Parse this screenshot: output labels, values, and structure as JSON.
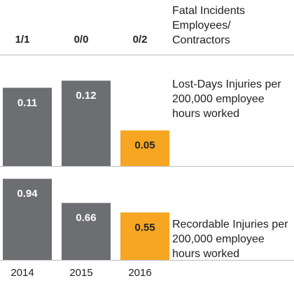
{
  "fatal_incidents": {
    "label_lines": [
      "Fatal Incidents",
      "Employees/",
      "Contractors"
    ],
    "values": [
      "1/1",
      "0/0",
      "0/2"
    ]
  },
  "chart_data": [
    {
      "type": "bar",
      "title": "Lost-Days Injuries per 200,000 employee hours worked",
      "label_lines": [
        "Lost-Days Injuries per",
        "200,000 employee",
        "hours worked"
      ],
      "categories": [
        "2014",
        "2015",
        "2016"
      ],
      "values": [
        0.11,
        0.12,
        0.05
      ],
      "value_labels": [
        "0.11",
        "0.12",
        "0.05"
      ],
      "ylim": [
        0,
        0.13
      ],
      "colors": [
        "#6d6e71",
        "#6d6e71",
        "#f6a623"
      ]
    },
    {
      "type": "bar",
      "title": "Recordable Injuries per 200,000 employee hours worked",
      "label_lines": [
        "Recordable Injuries per",
        "200,000 employee",
        "hours worked"
      ],
      "categories": [
        "2014",
        "2015",
        "2016"
      ],
      "values": [
        0.94,
        0.66,
        0.55
      ],
      "value_labels": [
        "0.94",
        "0.66",
        "0.55"
      ],
      "ylim": [
        0,
        1.08
      ],
      "colors": [
        "#6d6e71",
        "#6d6e71",
        "#f6a623"
      ]
    }
  ],
  "years": [
    "2014",
    "2015",
    "2016"
  ]
}
